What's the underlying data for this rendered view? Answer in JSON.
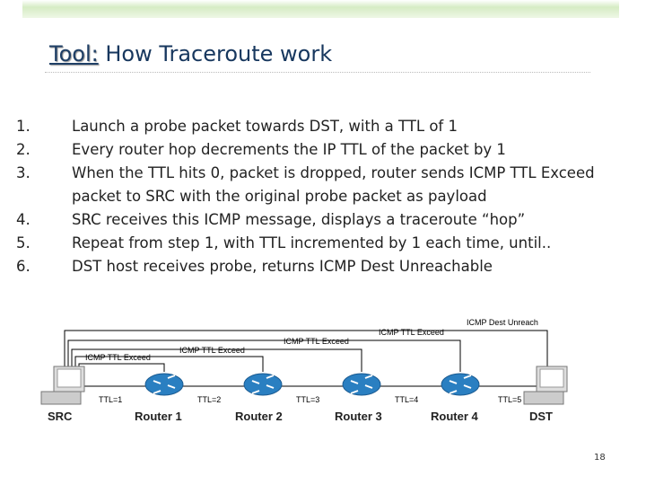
{
  "header": {
    "title_prefix": "Tool:",
    "title": "How Traceroute work"
  },
  "steps": [
    {
      "number": "1.",
      "text": "Launch a probe packet towards DST, with a TTL of 1"
    },
    {
      "number": "2.",
      "text": "Every router hop decrements the IP TTL of the packet by 1"
    },
    {
      "number": "3.",
      "text": "When the TTL hits 0, packet is dropped, router sends ICMP TTL Exceed packet to SRC with the original probe packet as payload"
    },
    {
      "number": "4.",
      "text": "SRC receives this ICMP message, displays a traceroute “hop”"
    },
    {
      "number": "5.",
      "text": "Repeat from step 1, with TTL incremented by 1 each time, until.."
    },
    {
      "number": "6.",
      "text": "DST host receives probe, returns ICMP Dest Unreachable"
    }
  ],
  "diagram": {
    "messages": [
      "ICMP TTL Exceed",
      "ICMP TTL Exceed",
      "ICMP TTL Exceed",
      "ICMP TTL Exceed",
      "ICMP Dest Unreach"
    ],
    "ttl_labels": [
      "TTL=1",
      "TTL=2",
      "TTL=3",
      "TTL=4",
      "TTL=5"
    ],
    "nodes": [
      "SRC",
      "Router 1",
      "Router 2",
      "Router 3",
      "Router 4",
      "DST"
    ]
  },
  "page_number": "18"
}
